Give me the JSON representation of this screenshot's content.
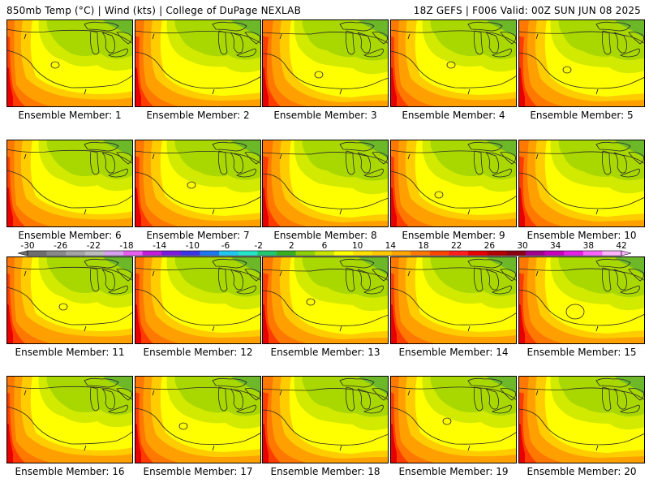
{
  "header": {
    "left": "850mb Temp (°C) | Wind (kts) | College of DuPage NEXLAB",
    "right": "18Z GEFS | F006 Valid: 00Z SUN JUN 08 2025"
  },
  "panels": [
    {
      "label": "Ensemble Member: 1"
    },
    {
      "label": "Ensemble Member: 2"
    },
    {
      "label": "Ensemble Member: 3"
    },
    {
      "label": "Ensemble Member: 4"
    },
    {
      "label": "Ensemble Member: 5"
    },
    {
      "label": "Ensemble Member: 6"
    },
    {
      "label": "Ensemble Member: 7"
    },
    {
      "label": "Ensemble Member: 8"
    },
    {
      "label": "Ensemble Member: 9"
    },
    {
      "label": "Ensemble Member: 10"
    },
    {
      "label": "Ensemble Member: 11"
    },
    {
      "label": "Ensemble Member: 12"
    },
    {
      "label": "Ensemble Member: 13"
    },
    {
      "label": "Ensemble Member: 14"
    },
    {
      "label": "Ensemble Member: 15"
    },
    {
      "label": "Ensemble Member: 16"
    },
    {
      "label": "Ensemble Member: 17"
    },
    {
      "label": "Ensemble Member: 18"
    },
    {
      "label": "Ensemble Member: 19"
    },
    {
      "label": "Ensemble Member: 20"
    }
  ],
  "colorbar": {
    "tick_labels": [
      "-30",
      "-26",
      "-22",
      "-18",
      "-14",
      "-10",
      "-6",
      "-2",
      "2",
      "6",
      "10",
      "14",
      "18",
      "22",
      "26",
      "30",
      "34",
      "38",
      "42"
    ],
    "colors": [
      "#6f6f6f",
      "#8a8a8a",
      "#a5a5a5",
      "#bdbdbd",
      "#d7a0ee",
      "#e85ef0",
      "#c21dd8",
      "#7d1adf",
      "#3c35e8",
      "#1e78f0",
      "#20c8f0",
      "#24e6c8",
      "#20c870",
      "#38b020",
      "#8ed000",
      "#c8e400",
      "#ffff00",
      "#ffe100",
      "#ffc800",
      "#ffa500",
      "#ff7800",
      "#ff4600",
      "#ff1e1e",
      "#e60000",
      "#b40000",
      "#8c0014",
      "#a0008c",
      "#c800be",
      "#e61ee6",
      "#ff64ff",
      "#ffb4ff"
    ]
  },
  "map_colors": {
    "green_dark": "#6cb828",
    "green_light": "#a8d800",
    "yellow_green": "#d2ea00",
    "yellow": "#ffff00",
    "orange_light": "#ffcc00",
    "orange": "#ffa000",
    "orange_dark": "#ff7800",
    "red": "#ff3c00",
    "red_dark": "#e80000"
  }
}
